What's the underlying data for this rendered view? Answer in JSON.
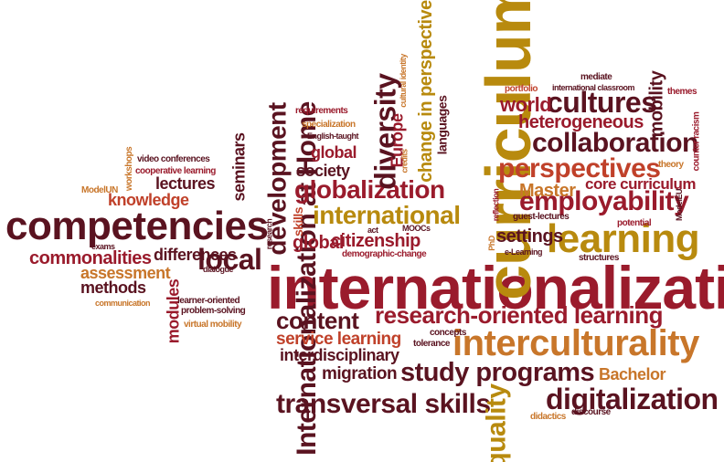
{
  "words": [
    {
      "id": "internationalization",
      "text": "internationalization",
      "color": "#9a1b2c"
    },
    {
      "id": "curriculum",
      "text": "curriculum",
      "color": "#b88a0e"
    },
    {
      "id": "competencies",
      "text": "competencies",
      "color": "#5a1320"
    },
    {
      "id": "internationalization-at-home",
      "text": "Internationalization at Home",
      "color": "#5a1320"
    },
    {
      "id": "learning",
      "text": "learning",
      "color": "#b88a0e"
    },
    {
      "id": "interculturality",
      "text": "interculturality",
      "color": "#c8762a"
    },
    {
      "id": "research-oriented-learning",
      "text": "research-oriented learning",
      "color": "#9a1b2c"
    },
    {
      "id": "digitalization",
      "text": "digitalization",
      "color": "#5a1320"
    },
    {
      "id": "transversal-skills",
      "text": "transversal skills",
      "color": "#5a1320"
    },
    {
      "id": "study-programs",
      "text": "study programs",
      "color": "#5a1320"
    },
    {
      "id": "globalization",
      "text": "globalization",
      "color": "#9a1b2c"
    },
    {
      "id": "international",
      "text": "international",
      "color": "#b88a0e"
    },
    {
      "id": "cultures",
      "text": "cultures",
      "color": "#5a1320"
    },
    {
      "id": "collaboration",
      "text": "collaboration",
      "color": "#5a1320"
    },
    {
      "id": "perspectives",
      "text": "perspectives",
      "color": "#c0412a"
    },
    {
      "id": "employability",
      "text": "employability",
      "color": "#9a1b2c"
    },
    {
      "id": "development",
      "text": "development",
      "color": "#5a1320"
    },
    {
      "id": "diversity",
      "text": "diversity",
      "color": "#5a1320"
    },
    {
      "id": "quality",
      "text": "quality",
      "color": "#b88a0e"
    },
    {
      "id": "content",
      "text": "content",
      "color": "#5a1320"
    },
    {
      "id": "local",
      "text": "local",
      "color": "#5a1320"
    },
    {
      "id": "change-in-perspective",
      "text": "change in perspective",
      "color": "#b88a0e"
    },
    {
      "id": "heterogeneous",
      "text": "heterogeneous",
      "color": "#9a1b2c"
    },
    {
      "id": "mobility",
      "text": "mobility",
      "color": "#5a1320"
    },
    {
      "id": "world",
      "text": "world",
      "color": "#9a1b2c"
    },
    {
      "id": "core-curriculum",
      "text": "core curriculum",
      "color": "#9a1b2c"
    },
    {
      "id": "master",
      "text": "Master",
      "color": "#c8762a"
    },
    {
      "id": "citizenship",
      "text": "citizenship",
      "color": "#9a1b2c"
    },
    {
      "id": "global-2",
      "text": "global",
      "color": "#9a1b2c"
    },
    {
      "id": "settings",
      "text": "settings",
      "color": "#5a1320"
    },
    {
      "id": "service-learning",
      "text": "service learning",
      "color": "#c0412a"
    },
    {
      "id": "interdisciplinary",
      "text": "interdisciplinary",
      "color": "#5a1320"
    },
    {
      "id": "migration",
      "text": "migration",
      "color": "#5a1320"
    },
    {
      "id": "bachelor",
      "text": "Bachelor",
      "color": "#c8762a"
    },
    {
      "id": "knowledge",
      "text": "knowledge",
      "color": "#c0412a"
    },
    {
      "id": "lectures",
      "text": "lectures",
      "color": "#5a1320"
    },
    {
      "id": "commonalities",
      "text": "commonalities",
      "color": "#9a1b2c"
    },
    {
      "id": "differences",
      "text": "differences",
      "color": "#5a1320"
    },
    {
      "id": "assessment",
      "text": "assessment",
      "color": "#c8762a"
    },
    {
      "id": "methods",
      "text": "methods",
      "color": "#5a1320"
    },
    {
      "id": "modules",
      "text": "modules",
      "color": "#9a1b2c"
    },
    {
      "id": "seminars",
      "text": "seminars",
      "color": "#5a1320"
    },
    {
      "id": "europe",
      "text": "Europe",
      "color": "#9a1b2c"
    },
    {
      "id": "languages",
      "text": "languages",
      "color": "#5a1320"
    },
    {
      "id": "society",
      "text": "society",
      "color": "#5a1320"
    },
    {
      "id": "global-1",
      "text": "global",
      "color": "#9a1b2c"
    },
    {
      "id": "skills",
      "text": "skills",
      "color": "#c0412a"
    },
    {
      "id": "video-conferences",
      "text": "video conferences",
      "color": "#5a1320"
    },
    {
      "id": "cooperative-learning",
      "text": "cooperative learning",
      "color": "#9a1b2c"
    },
    {
      "id": "workshops",
      "text": "workshops",
      "color": "#c8762a"
    },
    {
      "id": "modelun",
      "text": "ModelUN",
      "color": "#c8762a"
    },
    {
      "id": "exams",
      "text": "exams",
      "color": "#5a1320"
    },
    {
      "id": "dialogue",
      "text": "dialogue",
      "color": "#5a1320"
    },
    {
      "id": "communication",
      "text": "communication",
      "color": "#c8762a"
    },
    {
      "id": "learner-oriented",
      "text": "learner-oriented",
      "color": "#5a1320"
    },
    {
      "id": "problem-solving",
      "text": "problem-solving",
      "color": "#5a1320"
    },
    {
      "id": "virtual-mobility",
      "text": "virtual mobility",
      "color": "#c8762a"
    },
    {
      "id": "requirements",
      "text": "requirements",
      "color": "#9a1b2c"
    },
    {
      "id": "specialization",
      "text": "specialization",
      "color": "#c8762a"
    },
    {
      "id": "english-taught",
      "text": "English-taught",
      "color": "#5a1320"
    },
    {
      "id": "cultural-identity",
      "text": "cultural identity",
      "color": "#c8762a"
    },
    {
      "id": "credits",
      "text": "credits",
      "color": "#c8762a"
    },
    {
      "id": "research",
      "text": "research",
      "color": "#5a1320"
    },
    {
      "id": "act",
      "text": "act",
      "color": "#5a1320"
    },
    {
      "id": "moocs",
      "text": "MOOCs",
      "color": "#5a1320"
    },
    {
      "id": "demographic-change",
      "text": "demographic-change",
      "color": "#9a1b2c"
    },
    {
      "id": "phd",
      "text": "PhD",
      "color": "#c8762a"
    },
    {
      "id": "reflection",
      "text": "reflection",
      "color": "#9a1b2c"
    },
    {
      "id": "e-learning",
      "text": "e-Learning",
      "color": "#5a1320"
    },
    {
      "id": "guest-lectures",
      "text": "guest-lectures",
      "color": "#5a1320"
    },
    {
      "id": "potential",
      "text": "potential",
      "color": "#9a1b2c"
    },
    {
      "id": "structures",
      "text": "structures",
      "color": "#5a1320"
    },
    {
      "id": "modeleu",
      "text": "ModelEU",
      "color": "#5a1320"
    },
    {
      "id": "theory",
      "text": "theory",
      "color": "#c8762a"
    },
    {
      "id": "counter-racism",
      "text": "counter racism",
      "color": "#9a1b2c"
    },
    {
      "id": "themes",
      "text": "themes",
      "color": "#9a1b2c"
    },
    {
      "id": "mediate",
      "text": "mediate",
      "color": "#5a1320"
    },
    {
      "id": "international-classroom",
      "text": "international classroom",
      "color": "#5a1320"
    },
    {
      "id": "portfolio",
      "text": "portfolio",
      "color": "#c0412a"
    },
    {
      "id": "concepts",
      "text": "concepts",
      "color": "#5a1320"
    },
    {
      "id": "tolerance",
      "text": "tolerance",
      "color": "#5a1320"
    },
    {
      "id": "didactics",
      "text": "didactics",
      "color": "#c8762a"
    },
    {
      "id": "discourse",
      "text": "discourse",
      "color": "#5a1320"
    }
  ]
}
